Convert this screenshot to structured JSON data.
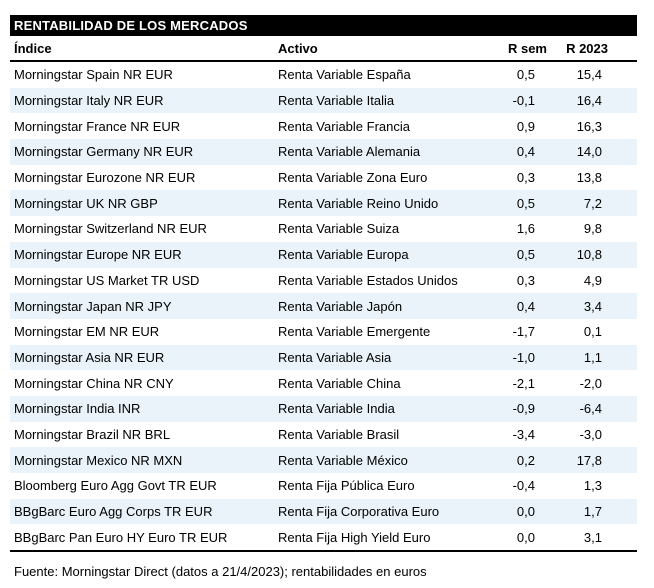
{
  "title": "RENTABILIDAD DE LOS MERCADOS",
  "table": {
    "columns": [
      "Índice",
      "Activo",
      "R sem",
      "R 2023"
    ],
    "rows": [
      {
        "indice": "Morningstar Spain NR EUR",
        "activo": "Renta Variable España",
        "r_sem": "0,5",
        "r_2023": "15,4"
      },
      {
        "indice": "Morningstar Italy NR EUR",
        "activo": "Renta Variable Italia",
        "r_sem": "-0,1",
        "r_2023": "16,4"
      },
      {
        "indice": "Morningstar France NR EUR",
        "activo": "Renta Variable Francia",
        "r_sem": "0,9",
        "r_2023": "16,3"
      },
      {
        "indice": "Morningstar Germany NR EUR",
        "activo": "Renta Variable Alemania",
        "r_sem": "0,4",
        "r_2023": "14,0"
      },
      {
        "indice": "Morningstar Eurozone NR EUR",
        "activo": "Renta Variable Zona Euro",
        "r_sem": "0,3",
        "r_2023": "13,8"
      },
      {
        "indice": "Morningstar UK NR GBP",
        "activo": "Renta Variable Reino Unido",
        "r_sem": "0,5",
        "r_2023": "7,2"
      },
      {
        "indice": "Morningstar Switzerland NR EUR",
        "activo": "Renta Variable Suiza",
        "r_sem": "1,6",
        "r_2023": "9,8"
      },
      {
        "indice": "Morningstar Europe NR EUR",
        "activo": "Renta Variable Europa",
        "r_sem": "0,5",
        "r_2023": "10,8"
      },
      {
        "indice": "Morningstar US Market TR USD",
        "activo": "Renta Variable Estados Unidos",
        "r_sem": "0,3",
        "r_2023": "4,9"
      },
      {
        "indice": "Morningstar Japan NR JPY",
        "activo": "Renta Variable Japón",
        "r_sem": "0,4",
        "r_2023": "3,4"
      },
      {
        "indice": "Morningstar EM NR EUR",
        "activo": "Renta Variable Emergente",
        "r_sem": "-1,7",
        "r_2023": "0,1"
      },
      {
        "indice": "Morningstar Asia NR EUR",
        "activo": "Renta Variable Asia",
        "r_sem": "-1,0",
        "r_2023": "1,1"
      },
      {
        "indice": "Morningstar China NR CNY",
        "activo": "Renta Variable China",
        "r_sem": "-2,1",
        "r_2023": "-2,0"
      },
      {
        "indice": "Morningstar India INR",
        "activo": "Renta Variable India",
        "r_sem": "-0,9",
        "r_2023": "-6,4"
      },
      {
        "indice": "Morningstar Brazil NR BRL",
        "activo": "Renta Variable Brasil",
        "r_sem": "-3,4",
        "r_2023": "-3,0"
      },
      {
        "indice": "Morningstar Mexico NR MXN",
        "activo": "Renta Variable México",
        "r_sem": "0,2",
        "r_2023": "17,8"
      },
      {
        "indice": "Bloomberg Euro Agg Govt TR EUR",
        "activo": "Renta Fija Pública Euro",
        "r_sem": "-0,4",
        "r_2023": "1,3"
      },
      {
        "indice": "BBgBarc Euro Agg Corps TR EUR",
        "activo": "Renta Fija Corporativa Euro",
        "r_sem": "0,0",
        "r_2023": "1,7"
      },
      {
        "indice": "BBgBarc Pan Euro HY Euro TR EUR",
        "activo": "Renta Fija High Yield Euro",
        "r_sem": "0,0",
        "r_2023": "3,1"
      }
    ]
  },
  "footer": "Fuente: Morningstar Direct (datos a 21/4/2023); rentabilidades en euros",
  "colors": {
    "title_bg": "#000000",
    "title_text": "#ffffff",
    "row_alt_bg": "#e9f3f9",
    "text": "#000000"
  }
}
